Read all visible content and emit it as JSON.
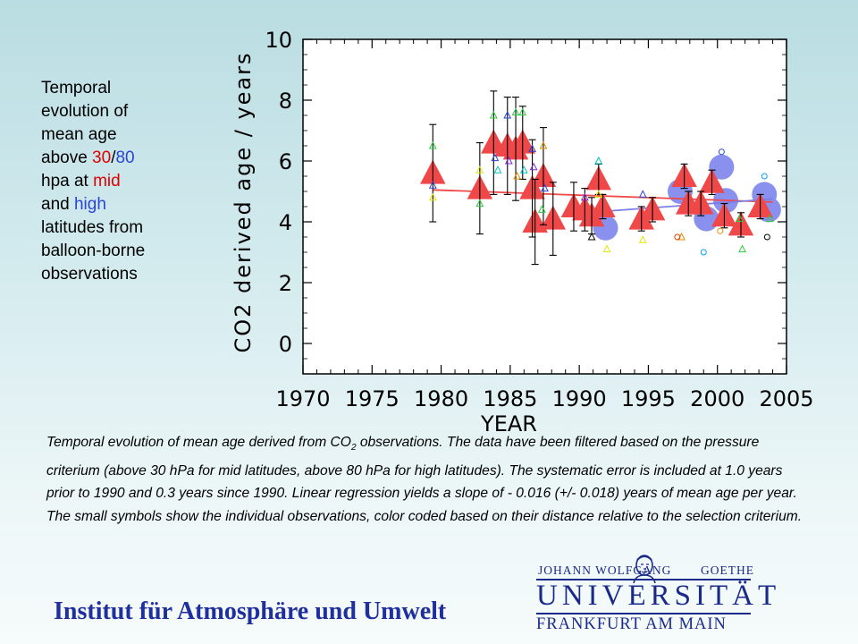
{
  "side_text": {
    "line1": "Temporal",
    "line2": "evolution of",
    "line3": "mean age",
    "line4_a": "above ",
    "line4_red": "30",
    "line4_b": "/",
    "line4_blue": "80",
    "line5_a": "hpa at ",
    "line5_red": "mid",
    "line6_a": "and ",
    "line6_blue": "high",
    "line7": "latitudes from",
    "line8": "balloon-borne",
    "line9": "observations"
  },
  "caption": {
    "part1": "Temporal evolution of mean age derived from CO",
    "sub": "2",
    "part2": " observations. The data have been filtered based on the pressure criterium (above 30 hPa for mid latitudes, above 80 hPa for high latitudes). The systematic error is included at 1.0 years prior to 1990 and 0.3 years since 1990. Linear regression yields a slope of - 0.016 (+/- 0.018) years of mean age per year. The small symbols show the individual observations, color coded based on their distance relative to the selection criterium."
  },
  "footer": {
    "institute": "Institut für Atmosphäre und Umwelt",
    "logo_top_left": "JOHANN WOLFGANG",
    "logo_top_right": "GOETHE",
    "logo_main": "UNIVERSITÄT",
    "logo_sub": "FRANKFURT AM MAIN"
  },
  "colors": {
    "red": "#e00000",
    "blue_text": "#2a45d6",
    "triangle": "#f04848",
    "circle": "#8a90ee",
    "institute": "#1f2f9e"
  },
  "chart_data": {
    "type": "scatter",
    "xlabel": "YEAR",
    "ylabel": "CO2 derived age / years",
    "xlim": [
      1970,
      2005
    ],
    "ylim": [
      -1,
      10
    ],
    "xticks": [
      "1970",
      "1975",
      "1980",
      "1985",
      "1990",
      "1995",
      "2000",
      "2005"
    ],
    "yticks": [
      "0",
      "2",
      "4",
      "6",
      "8",
      "10"
    ],
    "grid": false,
    "series": [
      {
        "marker": "triangle",
        "points": [
          {
            "x": 1979.4,
            "y": 5.6,
            "err": 1.6
          },
          {
            "x": 1982.8,
            "y": 5.1,
            "err": 1.5
          },
          {
            "x": 1983.8,
            "y": 6.6,
            "err": 1.7
          },
          {
            "x": 1984.8,
            "y": 6.5,
            "err": 1.6
          },
          {
            "x": 1985.4,
            "y": 6.4,
            "err": 1.7
          },
          {
            "x": 1985.9,
            "y": 6.6,
            "err": 1.2
          },
          {
            "x": 1986.6,
            "y": 5.1,
            "err": 1.6
          },
          {
            "x": 1986.8,
            "y": 4.0,
            "err": 1.4
          },
          {
            "x": 1987.4,
            "y": 5.5,
            "err": 1.6
          },
          {
            "x": 1988.1,
            "y": 4.1,
            "err": 1.2
          },
          {
            "x": 1989.6,
            "y": 4.5,
            "err": 0.8
          },
          {
            "x": 1990.4,
            "y": 4.4,
            "err": 0.7
          },
          {
            "x": 1990.9,
            "y": 4.2,
            "err": 0.6
          },
          {
            "x": 1991.4,
            "y": 5.4,
            "err": 0.5
          },
          {
            "x": 1991.7,
            "y": 4.5,
            "err": 0.4
          },
          {
            "x": 1994.5,
            "y": 4.1,
            "err": 0.4
          },
          {
            "x": 1995.3,
            "y": 4.4,
            "err": 0.4
          },
          {
            "x": 1997.6,
            "y": 5.5,
            "err": 0.4
          },
          {
            "x": 1997.9,
            "y": 4.6,
            "err": 0.4
          },
          {
            "x": 1998.8,
            "y": 4.6,
            "err": 0.4
          },
          {
            "x": 1999.6,
            "y": 5.3,
            "err": 0.4
          },
          {
            "x": 2000.5,
            "y": 4.2,
            "err": 0.4
          },
          {
            "x": 2001.7,
            "y": 3.9,
            "err": 0.4
          },
          {
            "x": 2003.1,
            "y": 4.5,
            "err": 0.4
          }
        ]
      },
      {
        "marker": "circle",
        "points": [
          {
            "x": 1991.9,
            "y": 3.8
          },
          {
            "x": 1997.3,
            "y": 5.0
          },
          {
            "x": 1999.2,
            "y": 4.1
          },
          {
            "x": 2000.3,
            "y": 5.8
          },
          {
            "x": 2000.6,
            "y": 4.7
          },
          {
            "x": 2003.4,
            "y": 4.9
          },
          {
            "x": 2003.7,
            "y": 4.4
          }
        ]
      }
    ],
    "regression": {
      "x": [
        1979.4,
        2004
      ],
      "y": [
        5.05,
        4.65
      ]
    },
    "regression_high": {
      "x": [
        1991.9,
        2004
      ],
      "y": [
        4.35,
        4.75
      ]
    },
    "small_symbols": [
      {
        "x": 1979.4,
        "y": 6.5,
        "c": "#2ecc40",
        "m": "t"
      },
      {
        "x": 1979.4,
        "y": 5.2,
        "c": "#2a45d6",
        "m": "t"
      },
      {
        "x": 1979.4,
        "y": 4.8,
        "c": "#e6e600",
        "m": "t"
      },
      {
        "x": 1982.8,
        "y": 5.7,
        "c": "#e6e600",
        "m": "t"
      },
      {
        "x": 1982.8,
        "y": 4.6,
        "c": "#2ecc40",
        "m": "t"
      },
      {
        "x": 1983.8,
        "y": 7.5,
        "c": "#2ecc40",
        "m": "t"
      },
      {
        "x": 1983.9,
        "y": 6.1,
        "c": "#2a45d6",
        "m": "t"
      },
      {
        "x": 1984.1,
        "y": 5.7,
        "c": "#00c0c0",
        "m": "t"
      },
      {
        "x": 1984.8,
        "y": 7.5,
        "c": "#2a45d6",
        "m": "t"
      },
      {
        "x": 1984.9,
        "y": 6.0,
        "c": "#7a2ad6",
        "m": "t"
      },
      {
        "x": 1985.4,
        "y": 7.6,
        "c": "#2ecc40",
        "m": "t"
      },
      {
        "x": 1985.5,
        "y": 5.5,
        "c": "#e09000",
        "m": "t"
      },
      {
        "x": 1985.9,
        "y": 7.6,
        "c": "#2ecc40",
        "m": "t"
      },
      {
        "x": 1986.0,
        "y": 5.7,
        "c": "#00c0c0",
        "m": "t"
      },
      {
        "x": 1986.6,
        "y": 6.4,
        "c": "#2a45d6",
        "m": "t"
      },
      {
        "x": 1986.7,
        "y": 5.8,
        "c": "#7a2ad6",
        "m": "t"
      },
      {
        "x": 1987.4,
        "y": 6.5,
        "c": "#e09000",
        "m": "t"
      },
      {
        "x": 1987.5,
        "y": 5.1,
        "c": "#2a45d6",
        "m": "t"
      },
      {
        "x": 1987.3,
        "y": 4.4,
        "c": "#2ecc40",
        "m": "t"
      },
      {
        "x": 1990.4,
        "y": 4.8,
        "c": "#7a2ad6",
        "m": "t"
      },
      {
        "x": 1990.9,
        "y": 3.5,
        "c": "#000000",
        "m": "t"
      },
      {
        "x": 1991.4,
        "y": 6.0,
        "c": "#00c0c0",
        "m": "t"
      },
      {
        "x": 1991.4,
        "y": 4.9,
        "c": "#e6e600",
        "m": "t"
      },
      {
        "x": 1992.0,
        "y": 3.1,
        "c": "#e6e600",
        "m": "t"
      },
      {
        "x": 1994.6,
        "y": 4.9,
        "c": "#2a45d6",
        "m": "t"
      },
      {
        "x": 1994.6,
        "y": 3.4,
        "c": "#e6e600",
        "m": "t"
      },
      {
        "x": 1997.4,
        "y": 3.5,
        "c": "#e09000",
        "m": "t"
      },
      {
        "x": 1997.1,
        "y": 3.5,
        "c": "#e04000",
        "m": "c"
      },
      {
        "x": 1999.0,
        "y": 3.0,
        "c": "#00a0ff",
        "m": "c"
      },
      {
        "x": 2000.2,
        "y": 3.7,
        "c": "#e09000",
        "m": "c"
      },
      {
        "x": 2000.3,
        "y": 6.3,
        "c": "#2a45d6",
        "m": "c"
      },
      {
        "x": 2001.6,
        "y": 4.1,
        "c": "#2ecc40",
        "m": "t"
      },
      {
        "x": 2001.8,
        "y": 3.1,
        "c": "#2ecc40",
        "m": "t"
      },
      {
        "x": 2003.4,
        "y": 5.5,
        "c": "#00a0ff",
        "m": "c"
      },
      {
        "x": 2003.6,
        "y": 3.5,
        "c": "#000000",
        "m": "c"
      },
      {
        "x": 2003.8,
        "y": 4.1,
        "c": "#2ecc40",
        "m": "t"
      }
    ]
  }
}
